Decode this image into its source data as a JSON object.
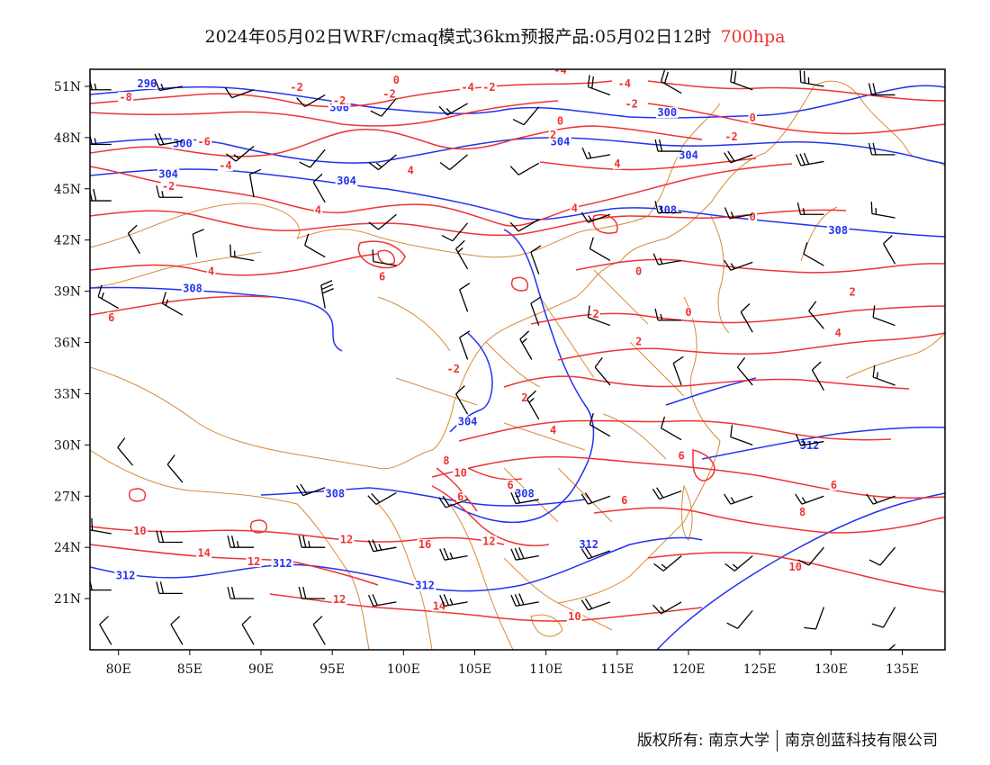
{
  "title": {
    "main": "2024年05月02日WRF/cmaq模式36km预报产品:05月02日12时",
    "level": "700hpa"
  },
  "map": {
    "lon_range": [
      78,
      138
    ],
    "lat_range": [
      18,
      52
    ],
    "x_ticks": [
      80,
      85,
      90,
      95,
      100,
      105,
      110,
      115,
      120,
      125,
      130,
      135
    ],
    "x_tick_labels": [
      "80E",
      "85E",
      "90E",
      "95E",
      "100E",
      "105E",
      "110E",
      "115E",
      "120E",
      "125E",
      "130E",
      "135E"
    ],
    "y_ticks": [
      21,
      24,
      27,
      30,
      33,
      36,
      39,
      42,
      45,
      48,
      51
    ],
    "y_tick_labels": [
      "21N",
      "24N",
      "27N",
      "30N",
      "33N",
      "36N",
      "39N",
      "42N",
      "45N",
      "48N",
      "51N"
    ],
    "colors": {
      "temperature": "#e33",
      "geopotential": "#23e",
      "border": "#d98a3a",
      "wind": "#000000"
    },
    "geopotential_labels": [
      {
        "text": "296",
        "lon": 82.0,
        "lat": 51.0
      },
      {
        "text": "300",
        "lon": 118.5,
        "lat": 49.3
      },
      {
        "text": "300",
        "lon": 84.5,
        "lat": 47.5
      },
      {
        "text": "304",
        "lon": 111.0,
        "lat": 47.6
      },
      {
        "text": "304",
        "lon": 83.5,
        "lat": 45.7
      },
      {
        "text": "304",
        "lon": 96.0,
        "lat": 45.3
      },
      {
        "text": "304",
        "lon": 120.0,
        "lat": 46.8
      },
      {
        "text": "306",
        "lon": 95.5,
        "lat": 49.6
      },
      {
        "text": "308",
        "lon": 118.5,
        "lat": 43.6
      },
      {
        "text": "308",
        "lon": 130.5,
        "lat": 42.4
      },
      {
        "text": "308",
        "lon": 85.2,
        "lat": 39.0
      },
      {
        "text": "304",
        "lon": 104.5,
        "lat": 31.2
      },
      {
        "text": "308",
        "lon": 95.2,
        "lat": 27.0
      },
      {
        "text": "308",
        "lon": 108.5,
        "lat": 27.0
      },
      {
        "text": "312",
        "lon": 80.5,
        "lat": 22.2
      },
      {
        "text": "312",
        "lon": 91.5,
        "lat": 22.9
      },
      {
        "text": "312",
        "lon": 101.5,
        "lat": 21.6
      },
      {
        "text": "312",
        "lon": 113.0,
        "lat": 24.0
      },
      {
        "text": "312",
        "lon": 128.5,
        "lat": 29.8
      }
    ],
    "temperature_labels": [
      {
        "text": "-8",
        "lon": 80.5,
        "lat": 50.2
      },
      {
        "text": "-6",
        "lon": 86.0,
        "lat": 47.6
      },
      {
        "text": "-4",
        "lon": 87.5,
        "lat": 46.2
      },
      {
        "text": "-2",
        "lon": 83.5,
        "lat": 45.0
      },
      {
        "text": "-2",
        "lon": 92.5,
        "lat": 50.8
      },
      {
        "text": "-2",
        "lon": 95.5,
        "lat": 50.0
      },
      {
        "text": "0",
        "lon": 99.5,
        "lat": 51.2
      },
      {
        "text": "-2",
        "lon": 99.0,
        "lat": 50.4
      },
      {
        "text": "-4",
        "lon": 104.5,
        "lat": 50.8
      },
      {
        "text": "-2",
        "lon": 106.0,
        "lat": 50.8
      },
      {
        "text": "-4",
        "lon": 111.0,
        "lat": 51.8
      },
      {
        "text": "-4",
        "lon": 115.5,
        "lat": 51.0
      },
      {
        "text": "-2",
        "lon": 116.0,
        "lat": 49.8
      },
      {
        "text": "0",
        "lon": 111.0,
        "lat": 48.8
      },
      {
        "text": "2",
        "lon": 110.5,
        "lat": 48.0
      },
      {
        "text": "-2",
        "lon": 123.0,
        "lat": 47.9
      },
      {
        "text": "0",
        "lon": 124.5,
        "lat": 49.0
      },
      {
        "text": "4",
        "lon": 115.0,
        "lat": 46.3
      },
      {
        "text": "4",
        "lon": 100.5,
        "lat": 45.9
      },
      {
        "text": "4",
        "lon": 94.0,
        "lat": 43.6
      },
      {
        "text": "4",
        "lon": 112.0,
        "lat": 43.7
      },
      {
        "text": "0",
        "lon": 124.5,
        "lat": 43.2
      },
      {
        "text": "6",
        "lon": 98.5,
        "lat": 39.7
      },
      {
        "text": "4",
        "lon": 86.5,
        "lat": 40.0
      },
      {
        "text": "6",
        "lon": 79.5,
        "lat": 37.3
      },
      {
        "text": "0",
        "lon": 116.5,
        "lat": 40.0
      },
      {
        "text": "2",
        "lon": 113.5,
        "lat": 37.5
      },
      {
        "text": "0",
        "lon": 120.0,
        "lat": 37.6
      },
      {
        "text": "2",
        "lon": 131.5,
        "lat": 38.8
      },
      {
        "text": "2",
        "lon": 116.5,
        "lat": 35.9
      },
      {
        "text": "4",
        "lon": 130.5,
        "lat": 36.4
      },
      {
        "text": "-2",
        "lon": 103.5,
        "lat": 34.3
      },
      {
        "text": "2",
        "lon": 108.5,
        "lat": 32.6
      },
      {
        "text": "4",
        "lon": 110.5,
        "lat": 30.7
      },
      {
        "text": "6",
        "lon": 119.5,
        "lat": 29.2
      },
      {
        "text": "6",
        "lon": 107.5,
        "lat": 27.5
      },
      {
        "text": "6",
        "lon": 104.0,
        "lat": 26.8
      },
      {
        "text": "8",
        "lon": 103.0,
        "lat": 28.9
      },
      {
        "text": "10",
        "lon": 104.0,
        "lat": 28.2
      },
      {
        "text": "6",
        "lon": 130.2,
        "lat": 27.5
      },
      {
        "text": "6",
        "lon": 115.5,
        "lat": 26.6
      },
      {
        "text": "8",
        "lon": 128.0,
        "lat": 25.9
      },
      {
        "text": "10",
        "lon": 81.5,
        "lat": 24.8
      },
      {
        "text": "14",
        "lon": 86.0,
        "lat": 23.5
      },
      {
        "text": "12",
        "lon": 89.5,
        "lat": 23.0
      },
      {
        "text": "12",
        "lon": 96.0,
        "lat": 24.3
      },
      {
        "text": "16",
        "lon": 101.5,
        "lat": 24.0
      },
      {
        "text": "12",
        "lon": 106.0,
        "lat": 24.2
      },
      {
        "text": "12",
        "lon": 95.5,
        "lat": 20.8
      },
      {
        "text": "14",
        "lon": 102.5,
        "lat": 20.4
      },
      {
        "text": "10",
        "lon": 112.0,
        "lat": 19.8
      },
      {
        "text": "10",
        "lon": 127.5,
        "lat": 22.7
      }
    ],
    "wind_barbs": [
      {
        "lon": 79.5,
        "lat": 50.8,
        "dir": 270,
        "spd": 25
      },
      {
        "lon": 84.5,
        "lat": 51.0,
        "dir": 260,
        "spd": 15
      },
      {
        "lon": 89.5,
        "lat": 50.8,
        "dir": 250,
        "spd": 10
      },
      {
        "lon": 94.5,
        "lat": 50.5,
        "dir": 240,
        "spd": 10
      },
      {
        "lon": 99.5,
        "lat": 50.3,
        "dir": 220,
        "spd": 10
      },
      {
        "lon": 104.5,
        "lat": 50.0,
        "dir": 240,
        "spd": 15
      },
      {
        "lon": 109.5,
        "lat": 49.8,
        "dir": 220,
        "spd": 10
      },
      {
        "lon": 114.5,
        "lat": 50.5,
        "dir": 290,
        "spd": 20
      },
      {
        "lon": 119.5,
        "lat": 50.6,
        "dir": 300,
        "spd": 20
      },
      {
        "lon": 124.5,
        "lat": 50.8,
        "dir": 290,
        "spd": 20
      },
      {
        "lon": 129.5,
        "lat": 51.0,
        "dir": 280,
        "spd": 25
      },
      {
        "lon": 134.5,
        "lat": 50.5,
        "dir": 270,
        "spd": 20
      },
      {
        "lon": 79.5,
        "lat": 47.6,
        "dir": 270,
        "spd": 25
      },
      {
        "lon": 84.5,
        "lat": 47.8,
        "dir": 260,
        "spd": 20
      },
      {
        "lon": 89.5,
        "lat": 47.5,
        "dir": 230,
        "spd": 15
      },
      {
        "lon": 94.5,
        "lat": 47.3,
        "dir": 220,
        "spd": 10
      },
      {
        "lon": 99.5,
        "lat": 47.0,
        "dir": 230,
        "spd": 15
      },
      {
        "lon": 104.5,
        "lat": 47.0,
        "dir": 230,
        "spd": 10
      },
      {
        "lon": 109.5,
        "lat": 46.5,
        "dir": 240,
        "spd": 10
      },
      {
        "lon": 114.5,
        "lat": 47.0,
        "dir": 260,
        "spd": 15
      },
      {
        "lon": 119.5,
        "lat": 47.2,
        "dir": 270,
        "spd": 20
      },
      {
        "lon": 124.5,
        "lat": 47.0,
        "dir": 250,
        "spd": 20
      },
      {
        "lon": 129.5,
        "lat": 46.6,
        "dir": 260,
        "spd": 30
      },
      {
        "lon": 134.5,
        "lat": 47.0,
        "dir": 270,
        "spd": 20
      },
      {
        "lon": 79.5,
        "lat": 44.3,
        "dir": 270,
        "spd": 30
      },
      {
        "lon": 84.5,
        "lat": 44.5,
        "dir": 270,
        "spd": 15
      },
      {
        "lon": 89.5,
        "lat": 44.5,
        "dir": 350,
        "spd": 10
      },
      {
        "lon": 94.5,
        "lat": 44.2,
        "dir": 330,
        "spd": 10
      },
      {
        "lon": 99.5,
        "lat": 43.5,
        "dir": 230,
        "spd": 10
      },
      {
        "lon": 104.5,
        "lat": 43.0,
        "dir": 220,
        "spd": 10
      },
      {
        "lon": 109.5,
        "lat": 43.2,
        "dir": 240,
        "spd": 10
      },
      {
        "lon": 114.5,
        "lat": 43.5,
        "dir": 250,
        "spd": 15
      },
      {
        "lon": 119.5,
        "lat": 43.6,
        "dir": 270,
        "spd": 15
      },
      {
        "lon": 124.5,
        "lat": 43.5,
        "dir": 260,
        "spd": 15
      },
      {
        "lon": 129.5,
        "lat": 43.5,
        "dir": 270,
        "spd": 15
      },
      {
        "lon": 134.5,
        "lat": 43.3,
        "dir": 280,
        "spd": 15
      },
      {
        "lon": 81.5,
        "lat": 41.2,
        "dir": 330,
        "spd": 10
      },
      {
        "lon": 85.5,
        "lat": 41.0,
        "dir": 350,
        "spd": 10
      },
      {
        "lon": 89.5,
        "lat": 40.8,
        "dir": 280,
        "spd": 15
      },
      {
        "lon": 94.5,
        "lat": 41.0,
        "dir": 300,
        "spd": 10
      },
      {
        "lon": 99.5,
        "lat": 40.5,
        "dir": 280,
        "spd": 10
      },
      {
        "lon": 104.5,
        "lat": 40.3,
        "dir": 330,
        "spd": 15
      },
      {
        "lon": 109.5,
        "lat": 40.0,
        "dir": 340,
        "spd": 10
      },
      {
        "lon": 114.5,
        "lat": 40.8,
        "dir": 300,
        "spd": 10
      },
      {
        "lon": 119.5,
        "lat": 40.8,
        "dir": 260,
        "spd": 15
      },
      {
        "lon": 124.5,
        "lat": 40.7,
        "dir": 250,
        "spd": 15
      },
      {
        "lon": 129.5,
        "lat": 40.5,
        "dir": 300,
        "spd": 10
      },
      {
        "lon": 134.5,
        "lat": 40.6,
        "dir": 330,
        "spd": 10
      },
      {
        "lon": 80.0,
        "lat": 38.0,
        "dir": 300,
        "spd": 15
      },
      {
        "lon": 84.5,
        "lat": 37.6,
        "dir": 300,
        "spd": 15
      },
      {
        "lon": 94.5,
        "lat": 38.0,
        "dir": 350,
        "spd": 30
      },
      {
        "lon": 104.5,
        "lat": 37.8,
        "dir": 340,
        "spd": 10
      },
      {
        "lon": 109.5,
        "lat": 37.0,
        "dir": 340,
        "spd": 10
      },
      {
        "lon": 114.5,
        "lat": 37.0,
        "dir": 290,
        "spd": 10
      },
      {
        "lon": 119.5,
        "lat": 37.3,
        "dir": 270,
        "spd": 15
      },
      {
        "lon": 124.5,
        "lat": 36.6,
        "dir": 330,
        "spd": 10
      },
      {
        "lon": 129.5,
        "lat": 36.8,
        "dir": 320,
        "spd": 10
      },
      {
        "lon": 134.5,
        "lat": 37.0,
        "dir": 290,
        "spd": 10
      },
      {
        "lon": 104.5,
        "lat": 35.0,
        "dir": 340,
        "spd": 10
      },
      {
        "lon": 109.0,
        "lat": 35.0,
        "dir": 330,
        "spd": 15
      },
      {
        "lon": 114.5,
        "lat": 33.5,
        "dir": 320,
        "spd": 10
      },
      {
        "lon": 119.5,
        "lat": 33.5,
        "dir": 340,
        "spd": 10
      },
      {
        "lon": 124.5,
        "lat": 33.5,
        "dir": 320,
        "spd": 10
      },
      {
        "lon": 129.5,
        "lat": 33.2,
        "dir": 330,
        "spd": 10
      },
      {
        "lon": 134.5,
        "lat": 33.5,
        "dir": 290,
        "spd": 15
      },
      {
        "lon": 104.5,
        "lat": 31.8,
        "dir": 330,
        "spd": 10
      },
      {
        "lon": 109.5,
        "lat": 31.5,
        "dir": 330,
        "spd": 15
      },
      {
        "lon": 114.5,
        "lat": 30.5,
        "dir": 300,
        "spd": 10
      },
      {
        "lon": 119.5,
        "lat": 30.3,
        "dir": 300,
        "spd": 10
      },
      {
        "lon": 124.5,
        "lat": 30.0,
        "dir": 290,
        "spd": 10
      },
      {
        "lon": 129.5,
        "lat": 30.2,
        "dir": 260,
        "spd": 15
      },
      {
        "lon": 81.0,
        "lat": 28.8,
        "dir": 320,
        "spd": 10
      },
      {
        "lon": 84.5,
        "lat": 27.8,
        "dir": 320,
        "spd": 10
      },
      {
        "lon": 94.5,
        "lat": 27.5,
        "dir": 250,
        "spd": 20
      },
      {
        "lon": 99.5,
        "lat": 27.2,
        "dir": 240,
        "spd": 20
      },
      {
        "lon": 104.5,
        "lat": 26.8,
        "dir": 250,
        "spd": 20
      },
      {
        "lon": 109.5,
        "lat": 26.8,
        "dir": 260,
        "spd": 20
      },
      {
        "lon": 114.5,
        "lat": 27.0,
        "dir": 250,
        "spd": 20
      },
      {
        "lon": 119.5,
        "lat": 27.3,
        "dir": 250,
        "spd": 20
      },
      {
        "lon": 124.5,
        "lat": 27.0,
        "dir": 250,
        "spd": 15
      },
      {
        "lon": 129.5,
        "lat": 27.0,
        "dir": 250,
        "spd": 15
      },
      {
        "lon": 134.5,
        "lat": 27.0,
        "dir": 250,
        "spd": 15
      },
      {
        "lon": 79.5,
        "lat": 24.8,
        "dir": 280,
        "spd": 20
      },
      {
        "lon": 84.5,
        "lat": 24.3,
        "dir": 270,
        "spd": 20
      },
      {
        "lon": 89.5,
        "lat": 24.0,
        "dir": 270,
        "spd": 25
      },
      {
        "lon": 94.5,
        "lat": 24.0,
        "dir": 270,
        "spd": 25
      },
      {
        "lon": 99.5,
        "lat": 24.0,
        "dir": 260,
        "spd": 25
      },
      {
        "lon": 104.5,
        "lat": 23.5,
        "dir": 260,
        "spd": 25
      },
      {
        "lon": 109.5,
        "lat": 23.5,
        "dir": 260,
        "spd": 30
      },
      {
        "lon": 114.5,
        "lat": 23.8,
        "dir": 250,
        "spd": 20
      },
      {
        "lon": 119.5,
        "lat": 23.5,
        "dir": 230,
        "spd": 15
      },
      {
        "lon": 124.5,
        "lat": 23.5,
        "dir": 230,
        "spd": 15
      },
      {
        "lon": 129.5,
        "lat": 24.0,
        "dir": 220,
        "spd": 10
      },
      {
        "lon": 134.5,
        "lat": 24.0,
        "dir": 220,
        "spd": 10
      },
      {
        "lon": 79.5,
        "lat": 21.5,
        "dir": 270,
        "spd": 20
      },
      {
        "lon": 84.5,
        "lat": 21.3,
        "dir": 270,
        "spd": 20
      },
      {
        "lon": 89.5,
        "lat": 21.0,
        "dir": 270,
        "spd": 20
      },
      {
        "lon": 94.5,
        "lat": 21.0,
        "dir": 270,
        "spd": 20
      },
      {
        "lon": 99.5,
        "lat": 20.8,
        "dir": 260,
        "spd": 20
      },
      {
        "lon": 104.5,
        "lat": 20.8,
        "dir": 260,
        "spd": 25
      },
      {
        "lon": 109.5,
        "lat": 20.8,
        "dir": 260,
        "spd": 30
      },
      {
        "lon": 114.5,
        "lat": 20.8,
        "dir": 250,
        "spd": 20
      },
      {
        "lon": 119.5,
        "lat": 20.8,
        "dir": 240,
        "spd": 15
      },
      {
        "lon": 124.5,
        "lat": 20.3,
        "dir": 220,
        "spd": 10
      },
      {
        "lon": 129.5,
        "lat": 20.5,
        "dir": 200,
        "spd": 10
      },
      {
        "lon": 134.5,
        "lat": 20.5,
        "dir": 210,
        "spd": 10
      },
      {
        "lon": 79.5,
        "lat": 18.3,
        "dir": 330,
        "spd": 10
      },
      {
        "lon": 84.5,
        "lat": 18.3,
        "dir": 330,
        "spd": 10
      },
      {
        "lon": 89.5,
        "lat": 18.3,
        "dir": 330,
        "spd": 10
      },
      {
        "lon": 94.5,
        "lat": 18.3,
        "dir": 330,
        "spd": 10
      },
      {
        "lon": 134.5,
        "lat": 18.3,
        "dir": 230,
        "spd": 10
      }
    ]
  },
  "footer": {
    "copyright": "版权所有: 南京大学",
    "company": "南京创蓝科技有限公司"
  }
}
